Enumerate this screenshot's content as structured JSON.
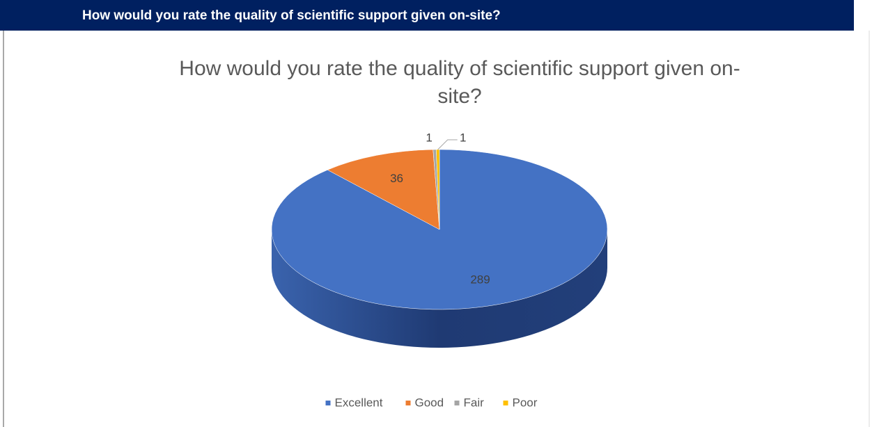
{
  "header": {
    "title": "How would you rate the quality of scientific support given on-site?"
  },
  "chart_data": {
    "type": "pie3d",
    "title_lines": [
      "How would you rate the quality of scientific support given on-",
      "site?"
    ],
    "categories": [
      "Excellent",
      "Good",
      "Fair",
      "Poor"
    ],
    "values": [
      289,
      36,
      1,
      1
    ],
    "colors": [
      "#4472c4",
      "#ed7d31",
      "#a5a5a5",
      "#ffc000"
    ],
    "legend": "bottom"
  }
}
